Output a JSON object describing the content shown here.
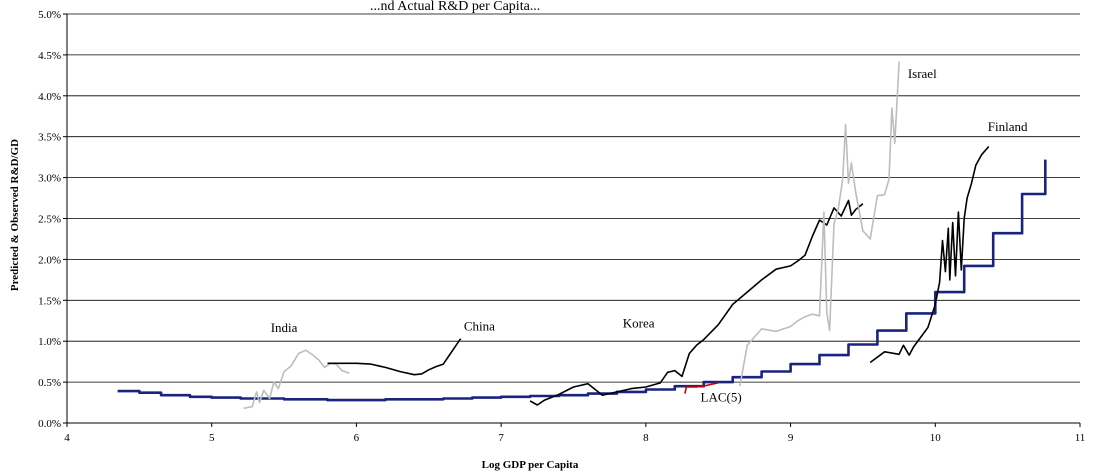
{
  "chart_data": {
    "type": "line",
    "title": "...nd Actual R&D per Capita...",
    "xlabel": "Log GDP per Capita",
    "ylabel": "Predicted & Observed R&D/GD",
    "xlim": [
      4,
      11
    ],
    "ylim": [
      0,
      0.05
    ],
    "x_ticks": [
      "4",
      "5",
      "6",
      "7",
      "8",
      "9",
      "10",
      "11"
    ],
    "y_ticks": [
      "0.0%",
      "0.5%",
      "1.0%",
      "1.5%",
      "2.0%",
      "2.5%",
      "3.0%",
      "3.5%",
      "4.0%",
      "4.5%",
      "5.0%"
    ],
    "grid": "horizontal",
    "legend": "none",
    "annotations": [
      {
        "text": "India",
        "x": 5.5,
        "y": 0.0111
      },
      {
        "text": "China",
        "x": 6.85,
        "y": 0.0113
      },
      {
        "text": "Korea",
        "x": 7.95,
        "y": 0.0117
      },
      {
        "text": "Israel",
        "x": 9.91,
        "y": 0.0422
      },
      {
        "text": "Finland",
        "x": 10.5,
        "y": 0.0357
      },
      {
        "text": "LAC(5)",
        "x": 8.52,
        "y": 0.0026
      }
    ],
    "series": [
      {
        "label_ref": "predicted",
        "color": "#1a237e",
        "style": "stepped",
        "x": [
          4.35,
          4.5,
          4.65,
          4.85,
          5.0,
          5.2,
          5.5,
          5.8,
          6.0,
          6.2,
          6.4,
          6.6,
          6.8,
          7.0,
          7.2,
          7.4,
          7.6,
          7.8,
          8.0,
          8.2,
          8.4,
          8.6,
          8.8,
          9.0,
          9.2,
          9.4,
          9.6,
          9.8,
          10.0,
          10.2,
          10.4,
          10.6,
          10.76
        ],
        "y": [
          0.0039,
          0.0037,
          0.0034,
          0.0032,
          0.0031,
          0.003,
          0.0029,
          0.0028,
          0.0028,
          0.0029,
          0.0029,
          0.003,
          0.0031,
          0.0032,
          0.0033,
          0.0034,
          0.0036,
          0.0038,
          0.0041,
          0.0045,
          0.005,
          0.0056,
          0.0063,
          0.0072,
          0.0083,
          0.0096,
          0.0113,
          0.0134,
          0.016,
          0.0192,
          0.0232,
          0.028,
          0.0322
        ]
      },
      {
        "label_ref": "India",
        "color": "#bdbdbd",
        "x": [
          5.22,
          5.28,
          5.31,
          5.33,
          5.36,
          5.4,
          5.43,
          5.46,
          5.5,
          5.55,
          5.6,
          5.65,
          5.7,
          5.74,
          5.78,
          5.82,
          5.86,
          5.9,
          5.95
        ],
        "y": [
          0.0018,
          0.002,
          0.0038,
          0.0025,
          0.004,
          0.003,
          0.005,
          0.0042,
          0.0063,
          0.007,
          0.0085,
          0.0089,
          0.0083,
          0.0077,
          0.0068,
          0.0073,
          0.0072,
          0.0064,
          0.0061
        ]
      },
      {
        "label_ref": "China",
        "color": "#000000",
        "x": [
          5.8,
          6.0,
          6.1,
          6.2,
          6.3,
          6.4,
          6.45,
          6.5,
          6.55,
          6.6,
          6.72
        ],
        "y": [
          0.0073,
          0.0073,
          0.0072,
          0.0068,
          0.0063,
          0.0059,
          0.006,
          0.0065,
          0.0069,
          0.0072,
          0.0103
        ]
      },
      {
        "label_ref": "Korea",
        "color": "#000000",
        "x": [
          7.2,
          7.25,
          7.3,
          7.4,
          7.5,
          7.6,
          7.7,
          7.8,
          7.9,
          8.0,
          8.1,
          8.15,
          8.2,
          8.25,
          8.3,
          8.35,
          8.4,
          8.5,
          8.6,
          8.7,
          8.8,
          8.9,
          9.0,
          9.05,
          9.1,
          9.15,
          9.2,
          9.25,
          9.3,
          9.35,
          9.4,
          9.42,
          9.45,
          9.5
        ],
        "y": [
          0.0027,
          0.0022,
          0.0028,
          0.0035,
          0.0044,
          0.0048,
          0.0034,
          0.0038,
          0.0042,
          0.0044,
          0.0049,
          0.0062,
          0.0064,
          0.0057,
          0.0085,
          0.0095,
          0.0102,
          0.012,
          0.0145,
          0.016,
          0.0175,
          0.0188,
          0.0192,
          0.0198,
          0.0205,
          0.0228,
          0.0248,
          0.0242,
          0.0263,
          0.0253,
          0.0272,
          0.0254,
          0.0261,
          0.0268
        ]
      },
      {
        "label_ref": "Israel",
        "color": "#bdbdbd",
        "x": [
          8.65,
          8.7,
          8.75,
          8.8,
          8.9,
          9.0,
          9.05,
          9.1,
          9.15,
          9.2,
          9.23,
          9.25,
          9.27,
          9.3,
          9.33,
          9.36,
          9.38,
          9.4,
          9.42,
          9.45,
          9.5,
          9.55,
          9.6,
          9.65,
          9.68,
          9.7,
          9.72,
          9.75
        ],
        "y": [
          0.0045,
          0.0095,
          0.0105,
          0.0115,
          0.0112,
          0.0118,
          0.0125,
          0.013,
          0.0133,
          0.0131,
          0.0258,
          0.0135,
          0.0113,
          0.0243,
          0.0262,
          0.0298,
          0.0365,
          0.0293,
          0.0318,
          0.0282,
          0.0235,
          0.0225,
          0.0278,
          0.0279,
          0.0298,
          0.0385,
          0.0342,
          0.0442
        ]
      },
      {
        "label_ref": "Finland",
        "color": "#000000",
        "x": [
          9.55,
          9.65,
          9.75,
          9.78,
          9.82,
          9.85,
          9.9,
          9.95,
          10.0,
          10.03,
          10.05,
          10.07,
          10.09,
          10.1,
          10.12,
          10.14,
          10.16,
          10.18,
          10.2,
          10.22,
          10.25,
          10.28,
          10.32,
          10.37
        ],
        "y": [
          0.0074,
          0.0087,
          0.0084,
          0.0095,
          0.0083,
          0.0093,
          0.0105,
          0.0117,
          0.0145,
          0.0172,
          0.0223,
          0.0185,
          0.0238,
          0.0175,
          0.0245,
          0.018,
          0.0258,
          0.0187,
          0.025,
          0.0275,
          0.0293,
          0.0315,
          0.0328,
          0.0338
        ]
      },
      {
        "label_ref": "LAC(5)",
        "color": "#cc0000",
        "x": [
          8.27,
          8.28,
          8.35,
          8.42,
          8.5
        ],
        "y": [
          0.0036,
          0.0044,
          0.0044,
          0.0046,
          0.0049
        ]
      }
    ]
  }
}
